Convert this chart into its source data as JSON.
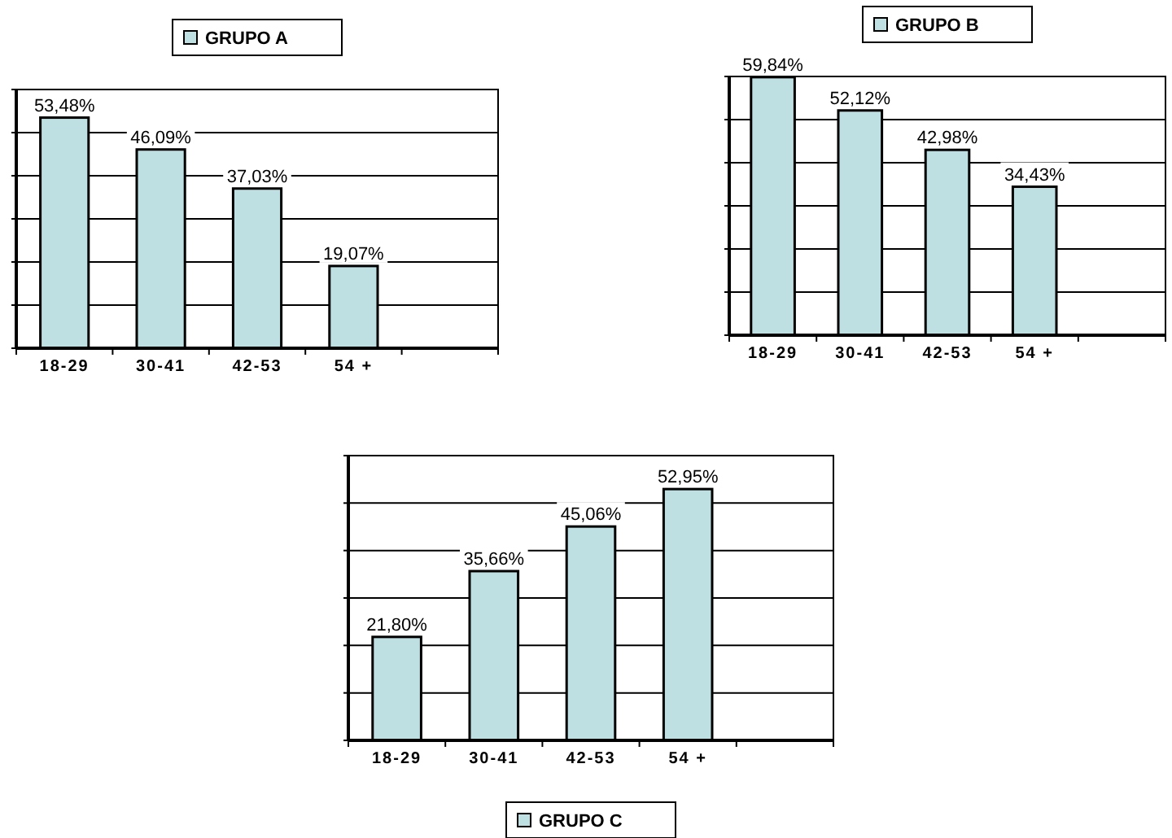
{
  "chart_data": [
    {
      "type": "bar",
      "categories": [
        "18-29",
        "30-41",
        "42-53",
        "54 +",
        null
      ],
      "series": [
        {
          "name": "GRUPO A",
          "color": "#bfe0e3",
          "values": [
            53.48,
            46.09,
            37.03,
            19.07,
            null
          ],
          "value_labels": [
            "53,48%",
            "46,09%",
            "37,03%",
            "19,07%",
            null
          ]
        }
      ],
      "ylim": [
        0,
        60
      ],
      "yticks": [
        {
          "value": 0,
          "label": null
        },
        {
          "value": 10,
          "label": null
        },
        {
          "value": 20,
          "label": null
        },
        {
          "value": 30,
          "label": null
        },
        {
          "value": 40,
          "label": null
        },
        {
          "value": 50,
          "label": null
        },
        {
          "value": 60,
          "label": null
        }
      ],
      "grid": "y",
      "legend": "top",
      "tick_labels": "x"
    },
    {
      "type": "bar",
      "categories": [
        "18-29",
        "30-41",
        "42-53",
        "54 +",
        null
      ],
      "series": [
        {
          "name": "GRUPO B",
          "color": "#bfe0e3",
          "values": [
            59.84,
            52.12,
            42.98,
            34.43,
            null
          ],
          "value_labels": [
            "59,84%",
            "52,12%",
            "42,98%",
            "34,43%",
            null
          ]
        }
      ],
      "ylim": [
        0,
        60
      ],
      "yticks": [
        {
          "value": 0,
          "label": null
        },
        {
          "value": 10,
          "label": null
        },
        {
          "value": 20,
          "label": null
        },
        {
          "value": 30,
          "label": null
        },
        {
          "value": 40,
          "label": null
        },
        {
          "value": 50,
          "label": null
        },
        {
          "value": 60,
          "label": null
        }
      ],
      "grid": "y",
      "legend": "top",
      "tick_labels": "x"
    },
    {
      "type": "bar",
      "categories": [
        "18-29",
        "30-41",
        "42-53",
        "54 +",
        null
      ],
      "series": [
        {
          "name": "GRUPO C",
          "color": "#bfe0e3",
          "values": [
            21.8,
            35.66,
            45.06,
            52.95,
            null
          ],
          "value_labels": [
            "21,80%",
            "35,66%",
            "45,06%",
            "52,95%",
            null
          ]
        }
      ],
      "ylim": [
        0,
        60
      ],
      "yticks": [
        {
          "value": 0,
          "label": null
        },
        {
          "value": 10,
          "label": null
        },
        {
          "value": 20,
          "label": null
        },
        {
          "value": 30,
          "label": null
        },
        {
          "value": 40,
          "label": null
        },
        {
          "value": 50,
          "label": null
        },
        {
          "value": 60,
          "label": null
        }
      ],
      "grid": "y",
      "legend": "bottom",
      "tick_labels": "x"
    }
  ]
}
